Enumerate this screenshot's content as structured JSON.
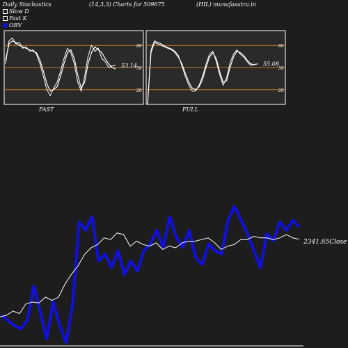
{
  "header": {
    "title_left": "Daily Stochastics",
    "title_mid": "(14,3,3) Charts for 509675",
    "title_right": "(HIL) munafasutra.in"
  },
  "legend": {
    "slow_d": "Slow  D",
    "fast_k": "Fast K",
    "obv": "OBV"
  },
  "colors": {
    "background": "#1d1d1d",
    "panel_bg": "#2a2a2a",
    "level_line": "#c8781e",
    "stoch_line": "#ffffff",
    "obv_line": "#1010e0",
    "close_line": "#ffffff"
  },
  "chart_data": [
    {
      "type": "line",
      "panel": "fast",
      "label": "FAST",
      "ylim": [
        0,
        100
      ],
      "levels": [
        20,
        50,
        80
      ],
      "level_labels": [
        "80",
        "50",
        "20"
      ],
      "last_value_label": "53.14",
      "series": [
        {
          "name": "Slow  D",
          "values": [
            60,
            82,
            86,
            84,
            80,
            78,
            76,
            74,
            72,
            70,
            60,
            45,
            28,
            18,
            20,
            24,
            38,
            55,
            70,
            74,
            62,
            40,
            22,
            30,
            55,
            70,
            78,
            74,
            70,
            62,
            55,
            50,
            48
          ]
        },
        {
          "name": "Fast K",
          "values": [
            55,
            86,
            90,
            82,
            84,
            76,
            78,
            72,
            74,
            68,
            55,
            38,
            20,
            12,
            22,
            30,
            45,
            62,
            76,
            70,
            55,
            30,
            18,
            38,
            65,
            80,
            72,
            76,
            62,
            58,
            50,
            52,
            53
          ]
        }
      ]
    },
    {
      "type": "line",
      "panel": "full",
      "label": "FULL",
      "ylim": [
        0,
        100
      ],
      "levels": [
        20,
        50,
        80
      ],
      "level_labels": [
        "80",
        "50",
        "20"
      ],
      "last_value_label": "55.08",
      "series": [
        {
          "name": "Slow  D",
          "values": [
            0,
            70,
            84,
            82,
            80,
            78,
            76,
            74,
            70,
            64,
            55,
            42,
            30,
            22,
            20,
            24,
            34,
            50,
            64,
            70,
            62,
            44,
            30,
            32,
            50,
            64,
            72,
            70,
            66,
            60,
            55,
            54,
            55
          ]
        },
        {
          "name": "Fast K",
          "values": [
            0,
            74,
            86,
            84,
            82,
            79,
            77,
            75,
            72,
            66,
            52,
            38,
            26,
            18,
            18,
            26,
            38,
            54,
            68,
            72,
            58,
            40,
            26,
            36,
            56,
            68,
            74,
            68,
            64,
            58,
            53,
            54,
            55
          ]
        }
      ]
    },
    {
      "type": "line",
      "panel": "obv",
      "close_label": "2341.65Close",
      "series": [
        {
          "name": "OBV",
          "values": [
            -80,
            -95,
            -110,
            -120,
            -95,
            5,
            -70,
            -150,
            -40,
            -110,
            -160,
            -50,
            195,
            170,
            210,
            80,
            100,
            60,
            110,
            40,
            80,
            50,
            110,
            130,
            170,
            120,
            210,
            150,
            120,
            170,
            90,
            70,
            130,
            110,
            100,
            200,
            240,
            200,
            160,
            110,
            60,
            160,
            140,
            195,
            170,
            200,
            180
          ]
        },
        {
          "name": "Close",
          "values": [
            1870,
            1880,
            1905,
            1890,
            1950,
            1960,
            1955,
            1990,
            1970,
            1990,
            2070,
            2130,
            2180,
            2250,
            2290,
            2310,
            2350,
            2340,
            2380,
            2370,
            2300,
            2330,
            2310,
            2300,
            2320,
            2280,
            2300,
            2290,
            2320,
            2330,
            2330,
            2340,
            2350,
            2320,
            2280,
            2300,
            2310,
            2340,
            2340,
            2360,
            2350,
            2350,
            2340,
            2350,
            2370,
            2350,
            2341.65
          ]
        }
      ]
    }
  ]
}
